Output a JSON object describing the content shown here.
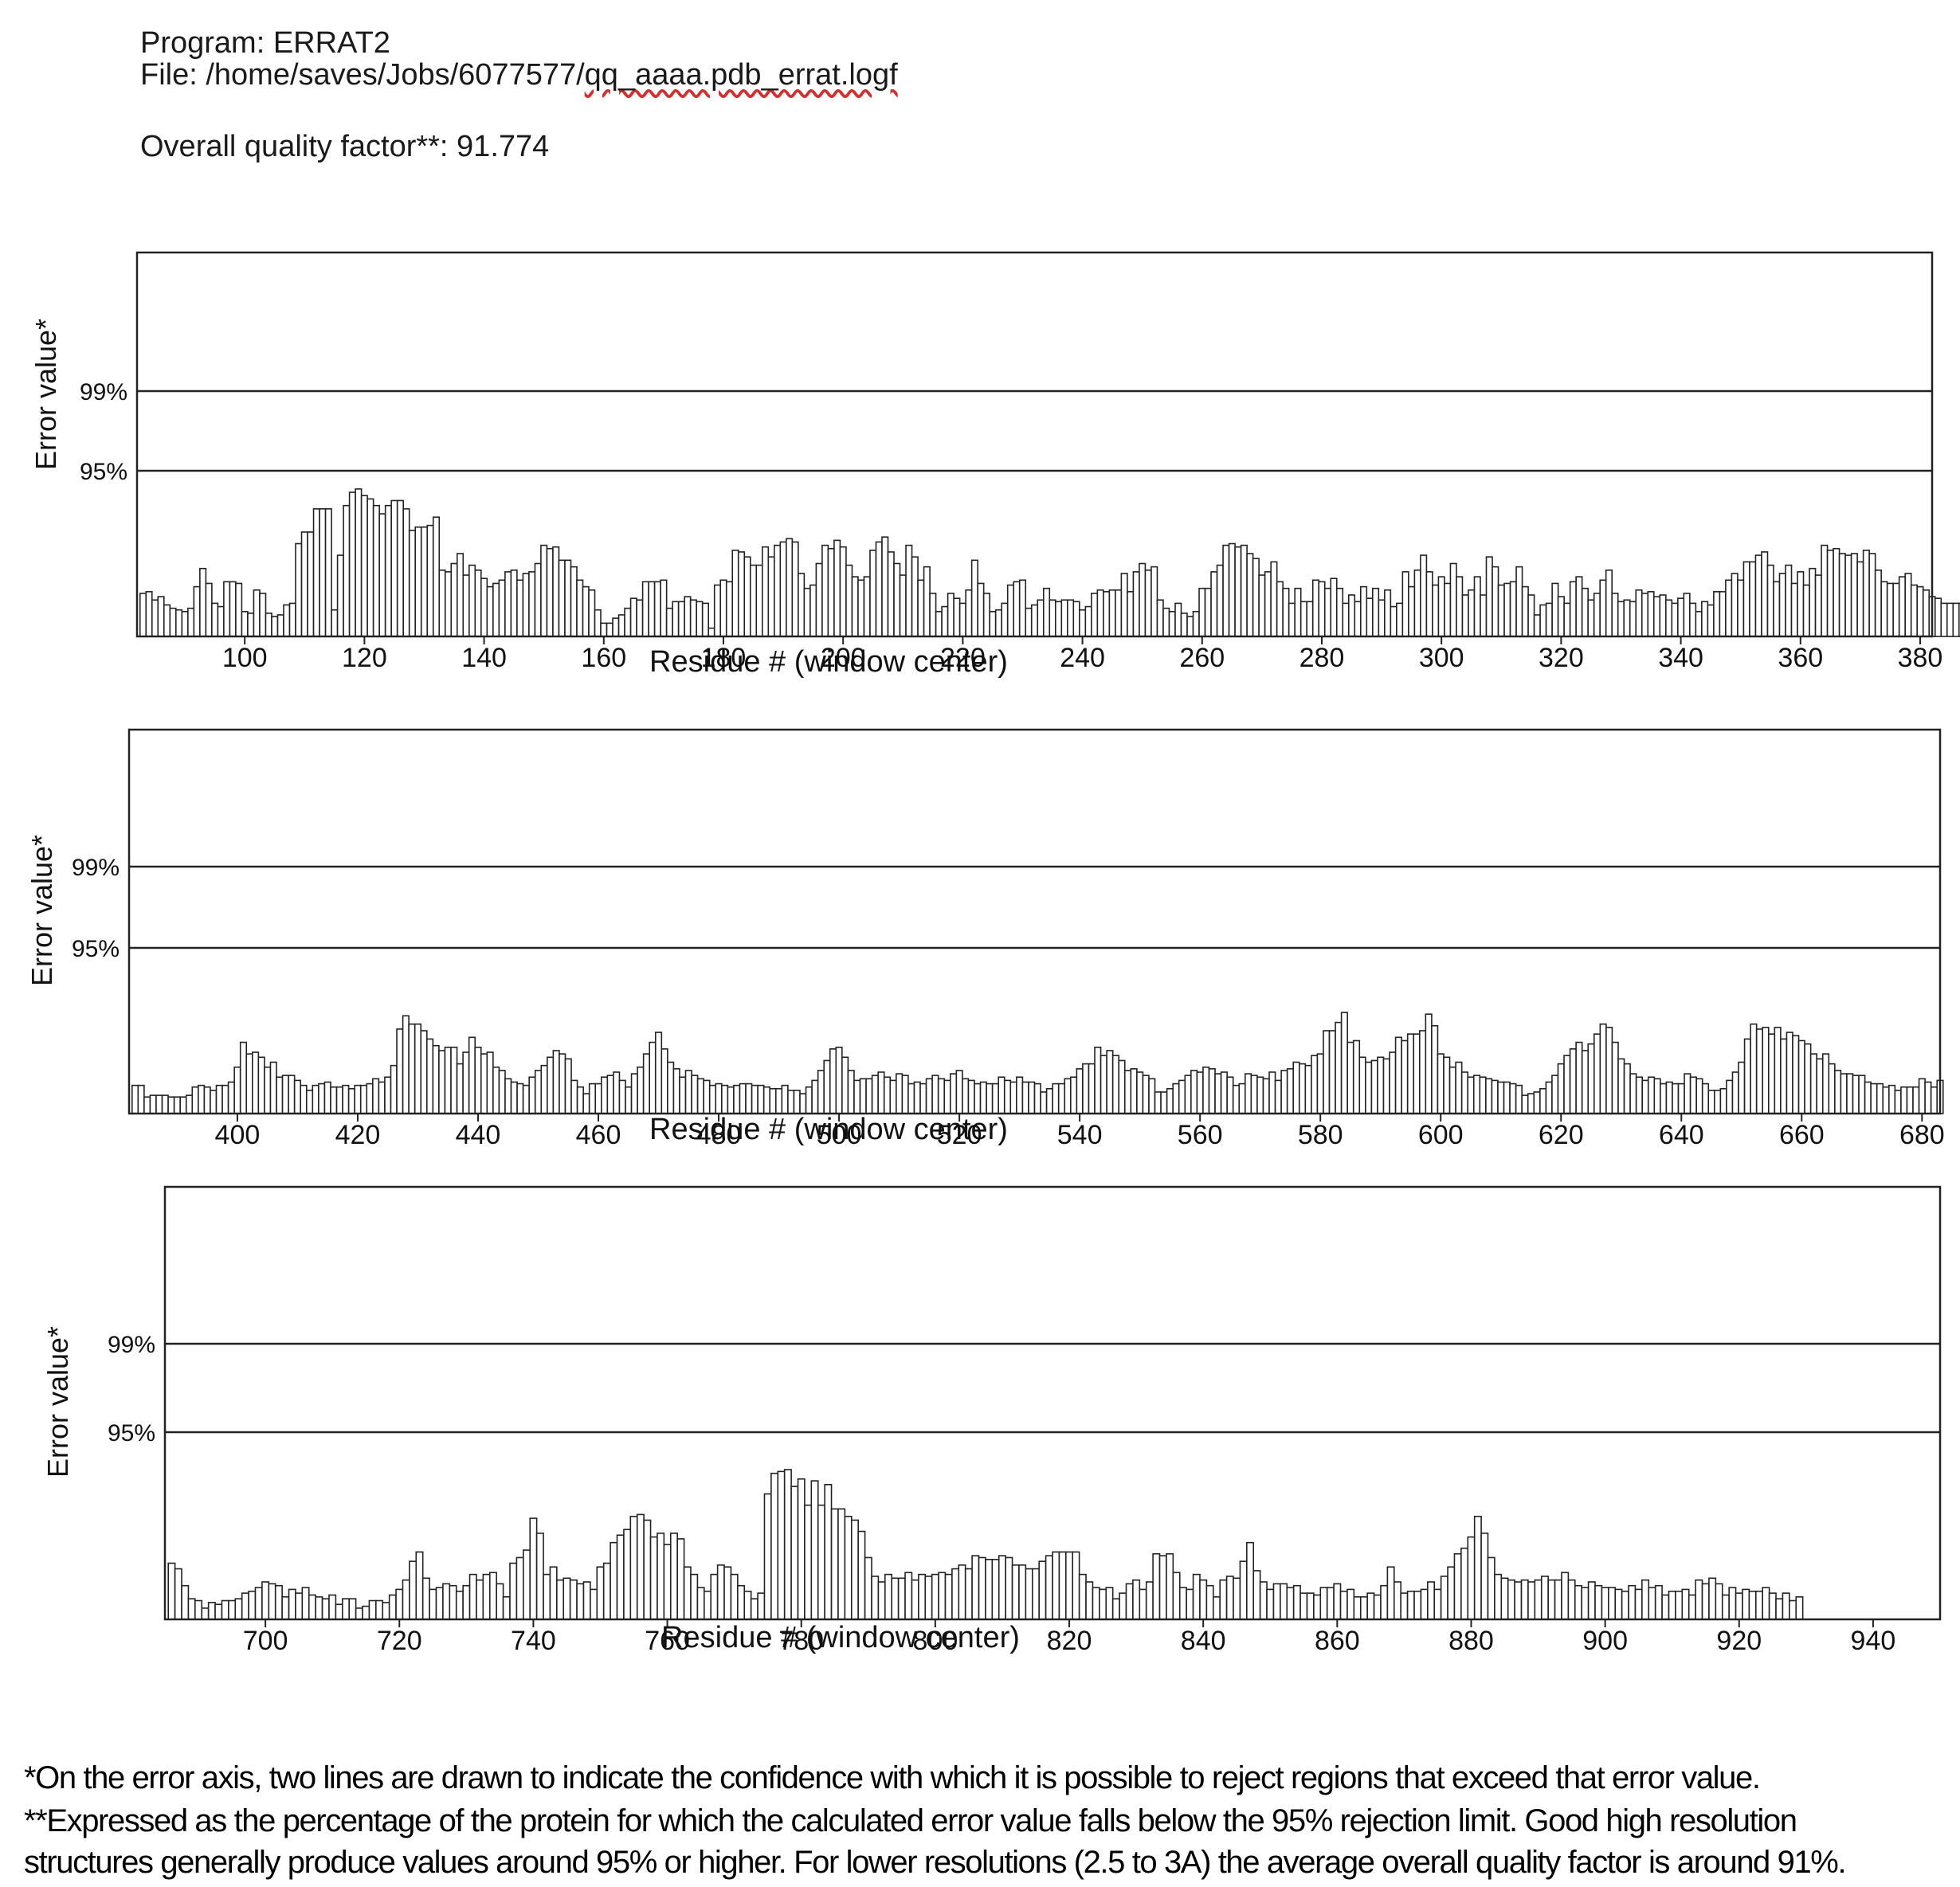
{
  "header": {
    "program": "Program: ERRAT2",
    "file_prefix": "File: /home/saves/Jobs/6077577/",
    "file_name": "qq_aaaa.pdb_errat.logf",
    "quality": "Overall quality factor**: 91.774"
  },
  "footnotes": {
    "line1": "*On the error axis, two lines are drawn to indicate the confidence with which it is possible to reject regions that exceed that error value.",
    "line2": "**Expressed as the percentage of the protein for which the calculated error value falls below the 95% rejection limit. Good high resolution",
    "line3": "structures generally produce values around 95% or higher. For lower resolutions (2.5 to 3A) the average overall quality factor is around 91%."
  },
  "colors": {
    "above99": "#111111",
    "above95": "#6e6e6e",
    "below95": "#ffffff",
    "stroke": "#222222"
  },
  "chart_data": [
    {
      "type": "bar",
      "xlabel": "Residue # (window center)",
      "ylabel": "Error value*",
      "thresholds": [
        "99%",
        "95%"
      ],
      "xlim": [
        82,
        382
      ],
      "xticks": [
        100,
        120,
        140,
        160,
        180,
        200,
        220,
        240,
        260,
        280,
        300,
        320,
        340,
        360,
        380
      ],
      "x_start": 83,
      "values": [
        26,
        27,
        22,
        24,
        19,
        17,
        16,
        15,
        17,
        30,
        41,
        32,
        20,
        18,
        33,
        33,
        32,
        15,
        14,
        28,
        26,
        14,
        12,
        13,
        19,
        20,
        56,
        63,
        63,
        77,
        77,
        77,
        16,
        49,
        79,
        87,
        89,
        85,
        83,
        79,
        74,
        79,
        82,
        82,
        77,
        64,
        66,
        66,
        67,
        72,
        40,
        39,
        44,
        50,
        37,
        43,
        40,
        35,
        30,
        32,
        34,
        39,
        40,
        34,
        38,
        39,
        44,
        55,
        53,
        54,
        46,
        46,
        42,
        34,
        30,
        28,
        16,
        8,
        8,
        11,
        13,
        17,
        23,
        22,
        33,
        33,
        33,
        34,
        17,
        21,
        21,
        24,
        22,
        21,
        20,
        5,
        31,
        34,
        33,
        52,
        51,
        48,
        43,
        43,
        54,
        48,
        55,
        57,
        59,
        57,
        38,
        29,
        31,
        44,
        55,
        53,
        58,
        54,
        43,
        36,
        34,
        36,
        52,
        57,
        60,
        51,
        44,
        37,
        55,
        48,
        34,
        42,
        26,
        15,
        18,
        26,
        23,
        20,
        28,
        46,
        32,
        26,
        15,
        16,
        20,
        31,
        33,
        34,
        17,
        19,
        22,
        29,
        22,
        21,
        22,
        22,
        21,
        16,
        18,
        26,
        28,
        27,
        28,
        28,
        38,
        27,
        39,
        44,
        40,
        42,
        22,
        17,
        15,
        20,
        14,
        12,
        15,
        29,
        29,
        39,
        43,
        55,
        56,
        54,
        55,
        50,
        47,
        37,
        39,
        45,
        33,
        29,
        20,
        29,
        21,
        21,
        34,
        33,
        29,
        35,
        29,
        20,
        25,
        21,
        30,
        23,
        29,
        22,
        28,
        18,
        20,
        39,
        30,
        40,
        49,
        39,
        31,
        36,
        32,
        44,
        36,
        25,
        28,
        36,
        25,
        48,
        42,
        31,
        32,
        33,
        42,
        30,
        25,
        13,
        19,
        20,
        32,
        24,
        20,
        33,
        36,
        29,
        22,
        26,
        34,
        40,
        26,
        21,
        22,
        21,
        28,
        26,
        27,
        24,
        25,
        22,
        20,
        23,
        26,
        20,
        15,
        21,
        19,
        27,
        27,
        34,
        38,
        34,
        45,
        45,
        49,
        51,
        43,
        33,
        38,
        43,
        32,
        39,
        31,
        41,
        37,
        55,
        52,
        53,
        50,
        49,
        50,
        45,
        52,
        50,
        40,
        33,
        32,
        32,
        36,
        38,
        31,
        30,
        28,
        24,
        23,
        20,
        20,
        20,
        20,
        30,
        30,
        33,
        33,
        21,
        19,
        18,
        17,
        19,
        15,
        10,
        15,
        9,
        11,
        16,
        12
      ]
    },
    {
      "type": "bar",
      "xlabel": "Residue # (window center)",
      "ylabel": "Error value*",
      "thresholds": [
        "99%",
        "95%"
      ],
      "xlim": [
        382,
        683
      ],
      "xticks": [
        400,
        420,
        440,
        460,
        480,
        500,
        520,
        540,
        560,
        580,
        600,
        620,
        640,
        660,
        680
      ],
      "x_start": 383,
      "values": [
        17,
        17,
        10,
        11,
        11,
        11,
        10,
        10,
        10,
        11,
        16,
        17,
        16,
        14,
        17,
        17,
        19,
        28,
        43,
        36,
        37,
        34,
        28,
        31,
        22,
        23,
        23,
        20,
        17,
        14,
        17,
        18,
        19,
        16,
        16,
        17,
        15,
        17,
        17,
        18,
        21,
        19,
        22,
        29,
        51,
        59,
        54,
        54,
        50,
        45,
        41,
        38,
        40,
        40,
        30,
        37,
        46,
        40,
        36,
        37,
        28,
        26,
        21,
        19,
        18,
        17,
        22,
        26,
        29,
        34,
        38,
        36,
        33,
        20,
        16,
        12,
        18,
        18,
        22,
        23,
        25,
        20,
        16,
        24,
        28,
        36,
        43,
        49,
        39,
        31,
        27,
        22,
        26,
        23,
        21,
        20,
        17,
        18,
        17,
        16,
        17,
        18,
        18,
        17,
        17,
        16,
        15,
        15,
        17,
        14,
        14,
        12,
        16,
        20,
        26,
        32,
        39,
        40,
        34,
        26,
        20,
        21,
        21,
        23,
        25,
        22,
        20,
        24,
        23,
        18,
        19,
        18,
        21,
        23,
        21,
        20,
        24,
        26,
        21,
        20,
        18,
        19,
        18,
        18,
        22,
        20,
        19,
        22,
        19,
        19,
        18,
        13,
        15,
        18,
        18,
        21,
        22,
        27,
        30,
        30,
        40,
        35,
        38,
        35,
        32,
        26,
        27,
        25,
        23,
        21,
        13,
        13,
        15,
        18,
        20,
        23,
        26,
        25,
        28,
        27,
        24,
        25,
        22,
        17,
        18,
        24,
        23,
        22,
        21,
        25,
        20,
        26,
        27,
        31,
        30,
        29,
        35,
        36,
        50,
        50,
        55,
        61,
        43,
        44,
        34,
        31,
        32,
        34,
        33,
        37,
        46,
        44,
        48,
        48,
        50,
        60,
        53,
        36,
        34,
        28,
        31,
        25,
        22,
        23,
        22,
        21,
        20,
        19,
        19,
        18,
        17,
        11,
        12,
        13,
        15,
        19,
        23,
        30,
        35,
        39,
        43,
        38,
        42,
        48,
        54,
        52,
        43,
        33,
        30,
        24,
        22,
        20,
        22,
        21,
        18,
        19,
        18,
        18,
        24,
        22,
        21,
        18,
        14,
        14,
        15,
        20,
        25,
        31,
        45,
        54,
        51,
        52,
        48,
        52,
        45,
        49,
        47,
        44,
        42,
        36,
        33,
        36,
        30,
        26,
        24,
        24,
        23,
        23,
        19,
        18,
        18,
        16,
        17,
        14,
        16,
        16,
        16,
        21,
        19,
        16,
        20
      ]
    },
    {
      "type": "bar",
      "xlabel": "Residue # (window center)",
      "ylabel": "Error value*",
      "thresholds": [
        "99%",
        "95%"
      ],
      "xlim": [
        685,
        950
      ],
      "xticks": [
        700,
        720,
        740,
        760,
        780,
        800,
        820,
        840,
        860,
        880,
        900,
        920,
        940
      ],
      "x_start": 686,
      "values": [
        30,
        27,
        18,
        11,
        10,
        6,
        9,
        8,
        10,
        10,
        11,
        14,
        15,
        17,
        20,
        19,
        18,
        12,
        16,
        14,
        17,
        13,
        12,
        11,
        13,
        8,
        11,
        11,
        6,
        7,
        10,
        10,
        9,
        13,
        16,
        21,
        31,
        36,
        22,
        16,
        17,
        19,
        18,
        15,
        18,
        24,
        21,
        24,
        25,
        19,
        12,
        30,
        33,
        37,
        54,
        46,
        24,
        28,
        21,
        22,
        21,
        19,
        20,
        16,
        28,
        30,
        41,
        45,
        48,
        55,
        56,
        53,
        44,
        46,
        40,
        46,
        43,
        28,
        24,
        17,
        15,
        24,
        29,
        28,
        24,
        18,
        15,
        11,
        14,
        67,
        78,
        79,
        80,
        71,
        75,
        61,
        74,
        61,
        72,
        59,
        59,
        55,
        53,
        47,
        33,
        23,
        20,
        24,
        22,
        22,
        25,
        21,
        24,
        23,
        24,
        25,
        24,
        27,
        29,
        27,
        34,
        33,
        32,
        32,
        34,
        33,
        29,
        29,
        27,
        27,
        31,
        34,
        36,
        36,
        36,
        36,
        24,
        20,
        17,
        16,
        17,
        11,
        14,
        19,
        21,
        16,
        20,
        35,
        34,
        35,
        25,
        17,
        16,
        24,
        21,
        18,
        12,
        21,
        23,
        22,
        31,
        41,
        26,
        20,
        16,
        19,
        19,
        17,
        18,
        14,
        14,
        13,
        17,
        17,
        19,
        15,
        16,
        12,
        12,
        14,
        13,
        18,
        28,
        20,
        14,
        15,
        15,
        16,
        20,
        16,
        23,
        28,
        35,
        38,
        44,
        55,
        46,
        33,
        24,
        22,
        21,
        20,
        21,
        20,
        21,
        23,
        21,
        21,
        25,
        21,
        18,
        17,
        20,
        18,
        17,
        17,
        16,
        15,
        18,
        16,
        21,
        17,
        18,
        13,
        15,
        15,
        16,
        13,
        21,
        19,
        22,
        19,
        13,
        17,
        14,
        16,
        15,
        15,
        17,
        14,
        11,
        14,
        10,
        12
      ]
    }
  ]
}
